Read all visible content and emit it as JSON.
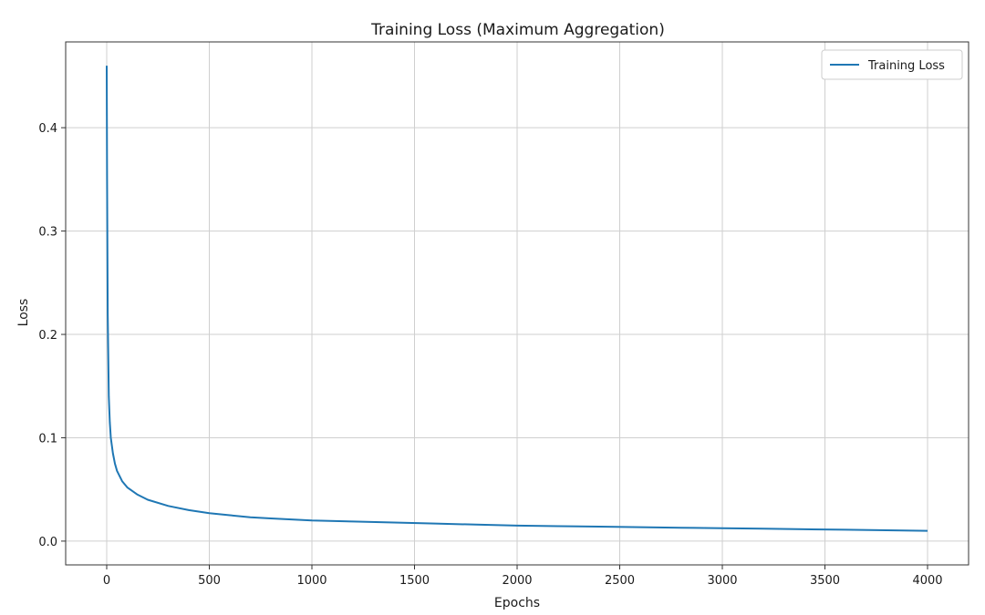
{
  "chart_data": {
    "type": "line",
    "title": "Training Loss (Maximum Aggregation)",
    "xlabel": "Epochs",
    "ylabel": "Loss",
    "xlim": [
      -200,
      4200
    ],
    "ylim": [
      -0.023,
      0.483
    ],
    "x_ticks": [
      0,
      500,
      1000,
      1500,
      2000,
      2500,
      3000,
      3500,
      4000
    ],
    "x_tick_labels": [
      "0",
      "500",
      "1000",
      "1500",
      "2000",
      "2500",
      "3000",
      "3500",
      "4000"
    ],
    "y_ticks": [
      0.0,
      0.1,
      0.2,
      0.3,
      0.4
    ],
    "y_tick_labels": [
      "0.0",
      "0.1",
      "0.2",
      "0.3",
      "0.4"
    ],
    "grid": true,
    "legend_position": "top-right",
    "series": [
      {
        "name": "Training Loss",
        "color": "#1f77b4",
        "x": [
          0,
          2,
          5,
          10,
          15,
          20,
          30,
          40,
          50,
          75,
          100,
          150,
          200,
          300,
          400,
          500,
          600,
          700,
          800,
          900,
          1000,
          1200,
          1400,
          1600,
          1800,
          2000,
          2200,
          2400,
          2600,
          2800,
          3000,
          3200,
          3400,
          3600,
          3800,
          4000
        ],
        "y": [
          0.46,
          0.35,
          0.22,
          0.14,
          0.115,
          0.1,
          0.085,
          0.075,
          0.068,
          0.058,
          0.052,
          0.045,
          0.04,
          0.034,
          0.03,
          0.027,
          0.025,
          0.023,
          0.022,
          0.021,
          0.02,
          0.019,
          0.018,
          0.017,
          0.016,
          0.015,
          0.0145,
          0.014,
          0.0135,
          0.013,
          0.0125,
          0.012,
          0.0115,
          0.011,
          0.0105,
          0.01
        ]
      }
    ]
  }
}
